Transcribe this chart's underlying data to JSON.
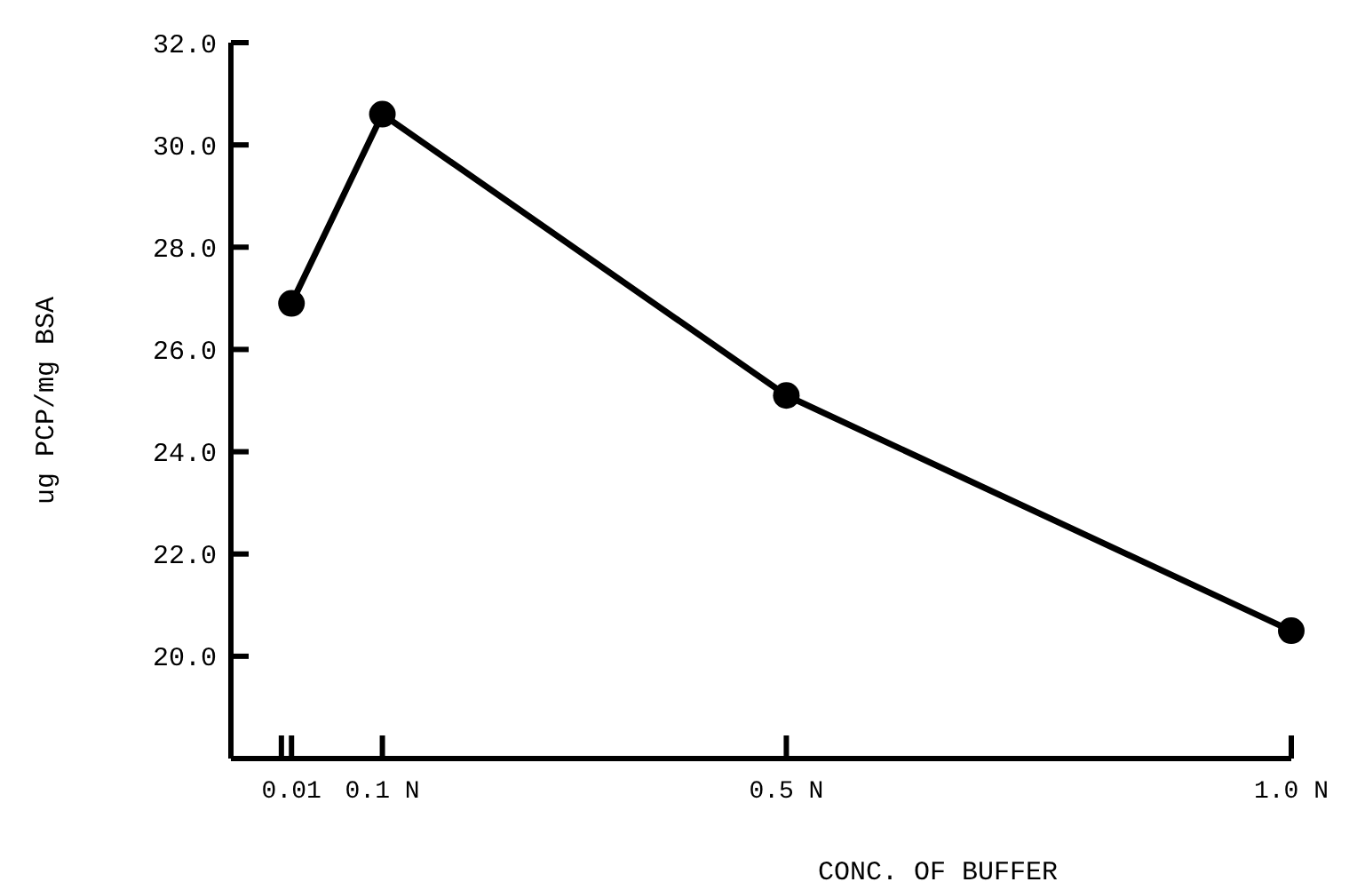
{
  "chart_data": {
    "type": "line",
    "xlabel": "CONC. OF BUFFER",
    "ylabel": "ug PCP/mg BSA",
    "x": [
      0.01,
      0.1,
      0.5,
      1.0
    ],
    "series": [
      {
        "color": "#000000",
        "values": [
          26.9,
          30.6,
          25.1,
          20.5
        ]
      }
    ],
    "xlim": [
      -0.05,
      1.0
    ],
    "xticks": [
      {
        "value": 0,
        "label": null
      },
      {
        "value": 0.01,
        "label": "0.01"
      },
      {
        "value": 0.1,
        "label": "0.1 N"
      },
      {
        "value": 0.5,
        "label": "0.5 N"
      },
      {
        "value": 1.0,
        "label": "1.0 N"
      }
    ],
    "ylim": [
      18,
      32
    ],
    "yticks": [
      {
        "value": 20,
        "label": "20.0"
      },
      {
        "value": 22,
        "label": "22.0"
      },
      {
        "value": 24,
        "label": "24.0"
      },
      {
        "value": 26,
        "label": "26.0"
      },
      {
        "value": 28,
        "label": "28.0"
      },
      {
        "value": 30,
        "label": "30.0"
      },
      {
        "value": 32,
        "label": "32.0"
      }
    ],
    "grid": false,
    "marker": "circle",
    "line_style": "solid"
  }
}
